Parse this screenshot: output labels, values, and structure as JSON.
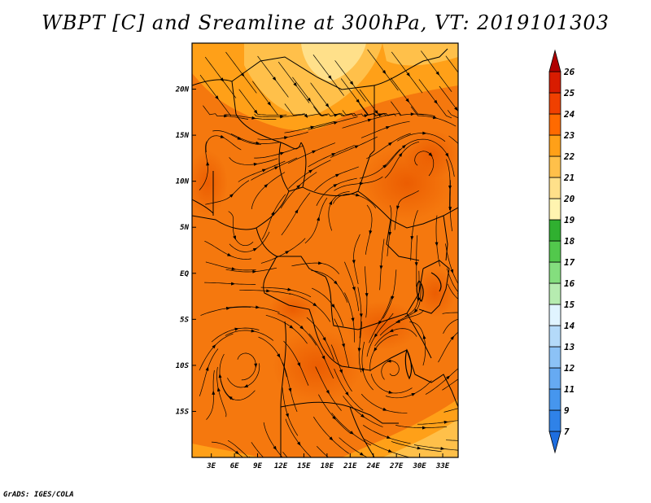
{
  "title": "WBPT [C] and Sreamline at 300hPa, VT: 2019101303",
  "credit": "GrADS: IGES/COLA",
  "map": {
    "lat_labels": [
      "20N",
      "15N",
      "10N",
      "5N",
      "EQ",
      "5S",
      "10S",
      "15S"
    ],
    "lat_values": [
      20,
      15,
      10,
      5,
      0,
      -5,
      -10,
      -15
    ],
    "lon_labels": [
      "3E",
      "6E",
      "9E",
      "12E",
      "15E",
      "18E",
      "21E",
      "24E",
      "27E",
      "30E",
      "33E"
    ],
    "lon_values": [
      3,
      6,
      9,
      12,
      15,
      18,
      21,
      24,
      27,
      30,
      33
    ],
    "lat_range": [
      -20,
      25
    ],
    "lon_range": [
      0.5,
      35
    ]
  },
  "colorbar": {
    "labels": [
      "7",
      "9",
      "11",
      "12",
      "13",
      "14",
      "15",
      "16",
      "17",
      "18",
      "19",
      "20",
      "21",
      "22",
      "23",
      "24",
      "25",
      "26"
    ],
    "colors": [
      "#1e6ee0",
      "#2f82e8",
      "#4696ee",
      "#66aaf2",
      "#8cc2f6",
      "#b4daf9",
      "#e0f4ff",
      "#b6ecb0",
      "#84de7e",
      "#52c84c",
      "#30b030",
      "#fff4b0",
      "#ffe08a",
      "#ffc04a",
      "#ffa018",
      "#ff6a00",
      "#f04000",
      "#d81c00",
      "#b00000"
    ]
  }
}
